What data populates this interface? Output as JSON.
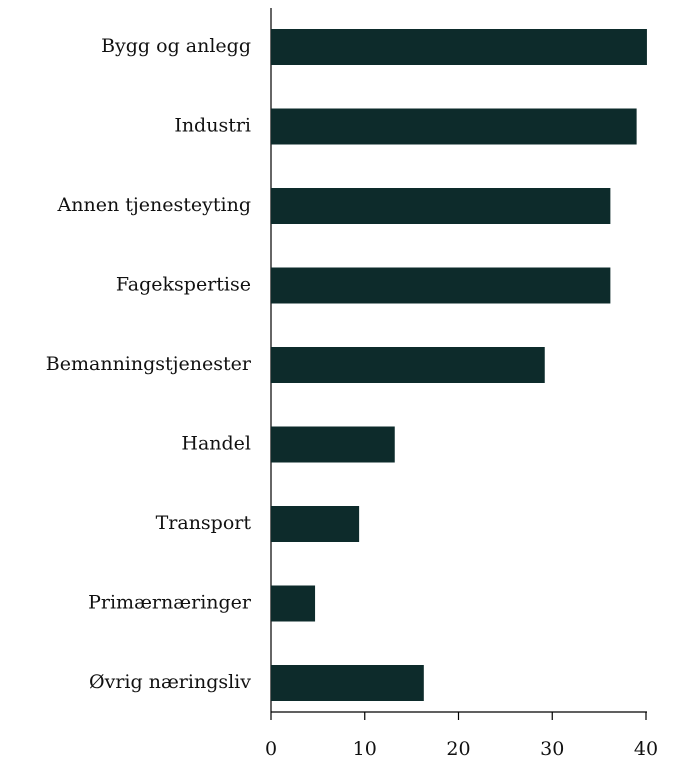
{
  "chart_data": {
    "type": "bar",
    "orientation": "horizontal",
    "categories": [
      "Bygg og anlegg",
      "Industri",
      "Annen tjenesteyting",
      "Fagekspertise",
      "Bemanningstjenester",
      "Handel",
      "Transport",
      "Primærnæringer",
      "Øvrig næringsliv"
    ],
    "values": [
      40.1,
      39.0,
      36.2,
      36.2,
      29.2,
      13.2,
      9.4,
      4.7,
      16.3
    ],
    "color": "#0d2b2b",
    "xlim": [
      0,
      40
    ],
    "xticks": [
      0,
      10,
      20,
      30,
      40
    ],
    "grid": false
  }
}
